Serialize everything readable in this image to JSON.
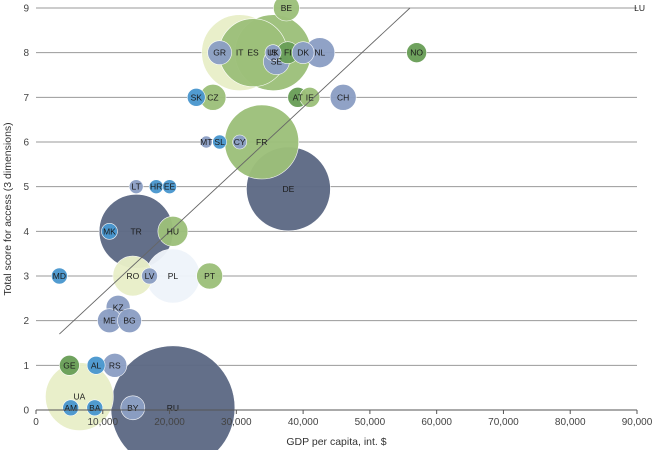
{
  "chart_data": {
    "type": "scatter",
    "subtype": "bubble",
    "title": "",
    "xlabel": "GDP per capita, int. $",
    "ylabel": "Total score for access (3 dimensions)",
    "xlim": [
      0,
      90000
    ],
    "ylim": [
      0,
      9
    ],
    "x_ticks": [
      0,
      10000,
      20000,
      30000,
      40000,
      50000,
      60000,
      70000,
      80000,
      90000
    ],
    "x_tick_labels": [
      "0",
      "10,000",
      "20,000",
      "30,000",
      "40,000",
      "50,000",
      "60,000",
      "70,000",
      "80,000",
      "90,000"
    ],
    "y_ticks": [
      0,
      1,
      2,
      3,
      4,
      5,
      6,
      7,
      8,
      9
    ],
    "y_tick_labels": [
      "0",
      "1",
      "2",
      "3",
      "4",
      "5",
      "6",
      "7",
      "8",
      "9"
    ],
    "grid": "horizontal",
    "trendline": {
      "x": [
        3500,
        56000
      ],
      "y": [
        1.7,
        9.0
      ]
    },
    "colors": {
      "navy": "#5d6a85",
      "slate": "#8c9fc4",
      "green": "#9dc07a",
      "darkgreen": "#6a9f58",
      "lightyellow": "#e9efc8",
      "pale": "#eff4fa",
      "blue": "#4a97cf",
      "grid": "#9a9a9a",
      "trend": "#666666"
    },
    "points": [
      {
        "label": "RU",
        "x": 20500,
        "y": 0.05,
        "size": 62,
        "color": "navy"
      },
      {
        "label": "UA",
        "x": 6500,
        "y": 0.3,
        "size": 34,
        "color": "lightyellow"
      },
      {
        "label": "AM",
        "x": 5200,
        "y": 0.05,
        "size": 8,
        "color": "blue"
      },
      {
        "label": "BA",
        "x": 8800,
        "y": 0.05,
        "size": 8,
        "color": "blue"
      },
      {
        "label": "BY",
        "x": 14500,
        "y": 0.05,
        "size": 12,
        "color": "slate"
      },
      {
        "label": "GE",
        "x": 5000,
        "y": 1.0,
        "size": 10,
        "color": "darkgreen"
      },
      {
        "label": "AL",
        "x": 9000,
        "y": 1.0,
        "size": 9,
        "color": "blue"
      },
      {
        "label": "RS",
        "x": 11800,
        "y": 1.0,
        "size": 12,
        "color": "slate"
      },
      {
        "label": "KZ",
        "x": 12300,
        "y": 2.3,
        "size": 12,
        "color": "slate"
      },
      {
        "label": "ME",
        "x": 11000,
        "y": 2.0,
        "size": 12,
        "color": "slate"
      },
      {
        "label": "BG",
        "x": 14000,
        "y": 2.0,
        "size": 12,
        "color": "slate"
      },
      {
        "label": "MD",
        "x": 3500,
        "y": 3.0,
        "size": 8,
        "color": "blue"
      },
      {
        "label": "RO",
        "x": 14500,
        "y": 3.0,
        "size": 20,
        "color": "lightyellow"
      },
      {
        "label": "LV",
        "x": 17000,
        "y": 3.0,
        "size": 8,
        "color": "slate"
      },
      {
        "label": "PL",
        "x": 20500,
        "y": 3.0,
        "size": 27,
        "color": "pale"
      },
      {
        "label": "PT",
        "x": 26000,
        "y": 3.0,
        "size": 13,
        "color": "green"
      },
      {
        "label": "MK",
        "x": 11000,
        "y": 4.0,
        "size": 8,
        "color": "blue"
      },
      {
        "label": "TR",
        "x": 15000,
        "y": 4.0,
        "size": 37,
        "color": "navy"
      },
      {
        "label": "HU",
        "x": 20500,
        "y": 4.0,
        "size": 15,
        "color": "green"
      },
      {
        "label": "LT",
        "x": 15000,
        "y": 5.0,
        "size": 7,
        "color": "slate"
      },
      {
        "label": "HR",
        "x": 18000,
        "y": 5.0,
        "size": 7,
        "color": "blue"
      },
      {
        "label": "EE",
        "x": 20000,
        "y": 5.0,
        "size": 7,
        "color": "blue"
      },
      {
        "label": "DE",
        "x": 37800,
        "y": 4.95,
        "size": 42,
        "color": "navy"
      },
      {
        "label": "MT",
        "x": 25500,
        "y": 6.0,
        "size": 6,
        "color": "slate"
      },
      {
        "label": "SL",
        "x": 27500,
        "y": 6.0,
        "size": 7,
        "color": "blue"
      },
      {
        "label": "CY",
        "x": 30500,
        "y": 6.0,
        "size": 7,
        "color": "slate"
      },
      {
        "label": "FR",
        "x": 33800,
        "y": 6.0,
        "size": 37,
        "color": "green"
      },
      {
        "label": "SK",
        "x": 24000,
        "y": 7.0,
        "size": 9,
        "color": "blue"
      },
      {
        "label": "CZ",
        "x": 26500,
        "y": 7.0,
        "size": 13,
        "color": "green"
      },
      {
        "label": "AT",
        "x": 39200,
        "y": 7.0,
        "size": 10,
        "color": "darkgreen"
      },
      {
        "label": "IE",
        "x": 41000,
        "y": 7.0,
        "size": 10,
        "color": "green"
      },
      {
        "label": "CH",
        "x": 46000,
        "y": 7.0,
        "size": 13,
        "color": "slate"
      },
      {
        "label": "GR",
        "x": 27500,
        "y": 8.0,
        "size": 12,
        "color": "slate"
      },
      {
        "label": "IT",
        "x": 30500,
        "y": 8.0,
        "size": 38,
        "color": "lightyellow"
      },
      {
        "label": "ES",
        "x": 32500,
        "y": 8.0,
        "size": 34,
        "color": "green"
      },
      {
        "label": "UK",
        "x": 35500,
        "y": 8.0,
        "size": 38,
        "color": "green"
      },
      {
        "label": "SE",
        "x": 36000,
        "y": 7.8,
        "size": 13,
        "color": "slate"
      },
      {
        "label": "IS",
        "x": 35500,
        "y": 8.0,
        "size": 8,
        "color": "slate"
      },
      {
        "label": "FI",
        "x": 37700,
        "y": 8.0,
        "size": 11,
        "color": "darkgreen"
      },
      {
        "label": "DK",
        "x": 40000,
        "y": 8.0,
        "size": 11,
        "color": "slate"
      },
      {
        "label": "NL",
        "x": 42500,
        "y": 8.0,
        "size": 15,
        "color": "slate"
      },
      {
        "label": "NO",
        "x": 57000,
        "y": 8.0,
        "size": 10,
        "color": "darkgreen"
      },
      {
        "label": "BE",
        "x": 37500,
        "y": 9.0,
        "size": 13,
        "color": "green"
      },
      {
        "label": "LU",
        "x": 90000,
        "y": 9.0,
        "size": 0,
        "color": "slate"
      }
    ]
  }
}
